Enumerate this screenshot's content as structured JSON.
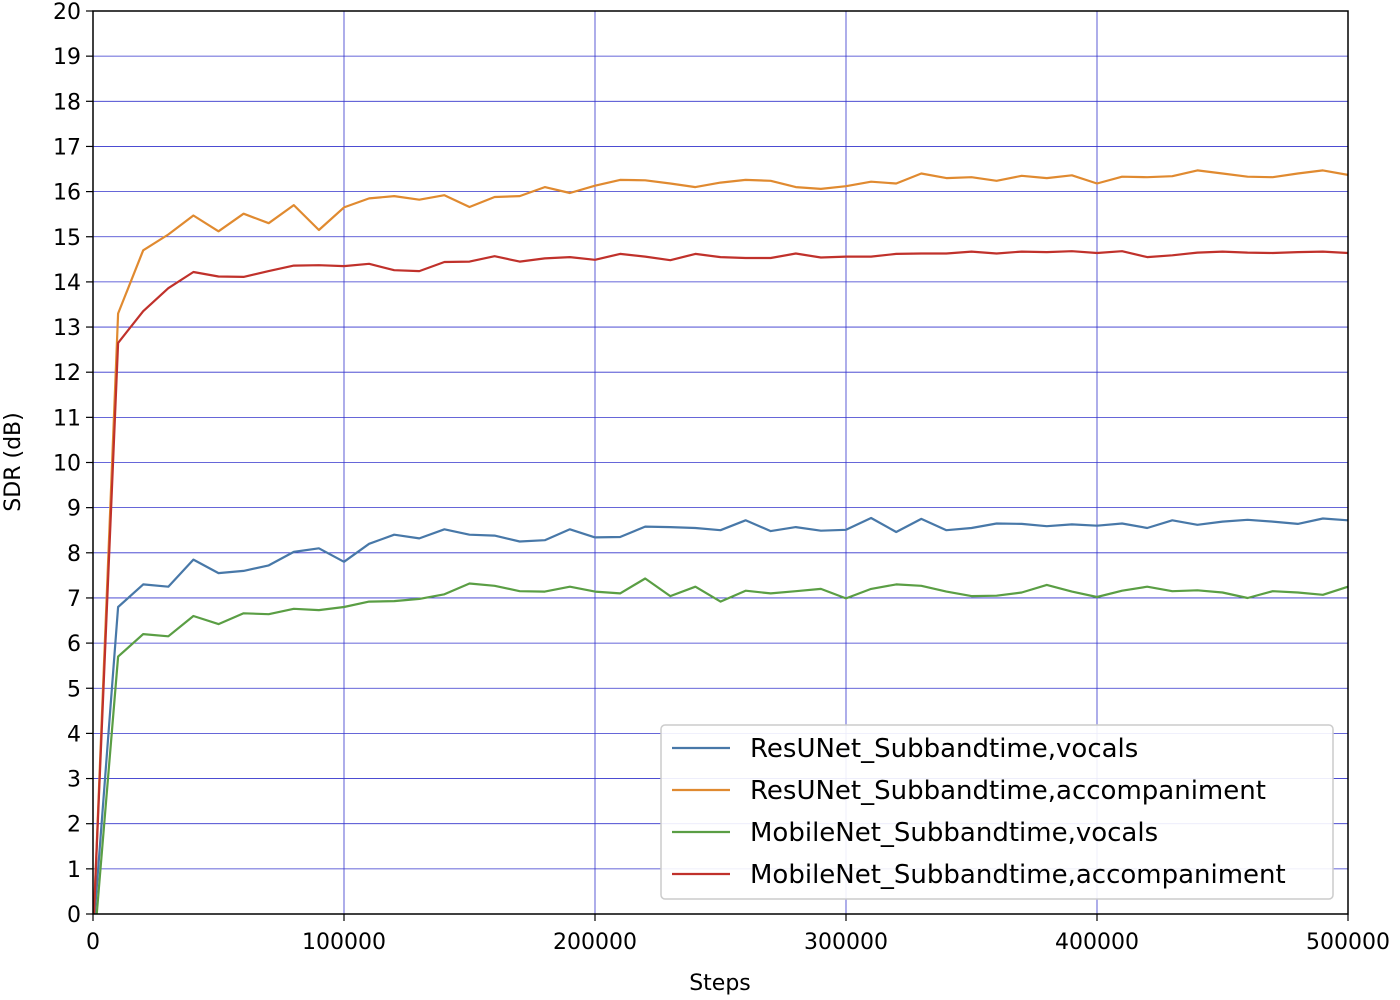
{
  "chart_data": {
    "type": "line",
    "title": "",
    "xlabel": "Steps",
    "ylabel": "SDR (dB)",
    "xlim": [
      0,
      500000
    ],
    "ylim": [
      0,
      20
    ],
    "xticks": [
      0,
      100000,
      200000,
      300000,
      400000,
      500000
    ],
    "yticks": [
      0,
      1,
      2,
      3,
      4,
      5,
      6,
      7,
      8,
      9,
      10,
      11,
      12,
      13,
      14,
      15,
      16,
      17,
      18,
      19,
      20
    ],
    "grid": true,
    "grid_color": "#3333cc",
    "legend_position": "lower-right",
    "x": [
      0,
      10000,
      20000,
      30000,
      40000,
      50000,
      60000,
      70000,
      80000,
      90000,
      100000,
      110000,
      120000,
      130000,
      140000,
      150000,
      160000,
      170000,
      180000,
      190000,
      200000,
      210000,
      220000,
      230000,
      240000,
      250000,
      260000,
      270000,
      280000,
      290000,
      300000,
      310000,
      320000,
      330000,
      340000,
      350000,
      360000,
      370000,
      380000,
      390000,
      400000,
      410000,
      420000,
      430000,
      440000,
      450000,
      460000,
      470000,
      480000,
      490000,
      500000
    ],
    "series": [
      {
        "name": "ResUNet_Subbandtime,vocals",
        "color": "#4878a8",
        "values": [
          -0.5,
          6.8,
          7.3,
          7.25,
          7.85,
          7.55,
          7.6,
          7.72,
          8.02,
          8.1,
          7.8,
          8.2,
          8.4,
          8.32,
          8.52,
          8.4,
          8.38,
          8.25,
          8.28,
          8.52,
          8.34,
          8.35,
          8.58,
          8.57,
          8.55,
          8.5,
          8.72,
          8.48,
          8.57,
          8.49,
          8.51,
          8.77,
          8.46,
          8.75,
          8.5,
          8.55,
          8.65,
          8.64,
          8.59,
          8.63,
          8.6,
          8.65,
          8.55,
          8.72,
          8.62,
          8.69,
          8.73,
          8.69,
          8.64,
          8.76,
          8.72
        ]
      },
      {
        "name": "ResUNet_Subbandtime,accompaniment",
        "color": "#e08a30",
        "values": [
          -0.5,
          13.3,
          14.7,
          15.05,
          15.47,
          15.12,
          15.51,
          15.3,
          15.7,
          15.15,
          15.65,
          15.85,
          15.9,
          15.82,
          15.92,
          15.66,
          15.88,
          15.9,
          16.1,
          15.97,
          16.13,
          16.26,
          16.25,
          16.18,
          16.1,
          16.2,
          16.26,
          16.24,
          16.1,
          16.06,
          16.12,
          16.22,
          16.18,
          16.4,
          16.3,
          16.32,
          16.24,
          16.35,
          16.3,
          16.36,
          16.18,
          16.33,
          16.32,
          16.34,
          16.47,
          16.4,
          16.33,
          16.32,
          16.4,
          16.47,
          16.37
        ]
      },
      {
        "name": "MobileNet_Subbandtime,vocals",
        "color": "#5a9e44",
        "values": [
          -1.0,
          5.7,
          6.2,
          6.15,
          6.6,
          6.42,
          6.66,
          6.64,
          6.76,
          6.73,
          6.8,
          6.92,
          6.93,
          6.98,
          7.08,
          7.32,
          7.27,
          7.15,
          7.14,
          7.25,
          7.14,
          7.1,
          7.43,
          7.04,
          7.25,
          6.92,
          7.16,
          7.1,
          7.15,
          7.2,
          6.99,
          7.2,
          7.3,
          7.27,
          7.14,
          7.04,
          7.05,
          7.12,
          7.29,
          7.14,
          7.02,
          7.16,
          7.25,
          7.15,
          7.17,
          7.12,
          7.0,
          7.15,
          7.12,
          7.07,
          7.25
        ]
      },
      {
        "name": "MobileNet_Subbandtime,accompaniment",
        "color": "#c0312b",
        "values": [
          -0.5,
          12.65,
          13.35,
          13.86,
          14.22,
          14.12,
          14.11,
          14.24,
          14.36,
          14.37,
          14.35,
          14.4,
          14.26,
          14.24,
          14.44,
          14.45,
          14.57,
          14.45,
          14.52,
          14.55,
          14.49,
          14.62,
          14.56,
          14.48,
          14.62,
          14.55,
          14.53,
          14.53,
          14.63,
          14.54,
          14.56,
          14.56,
          14.62,
          14.63,
          14.63,
          14.67,
          14.63,
          14.67,
          14.66,
          14.68,
          14.64,
          14.68,
          14.55,
          14.59,
          14.65,
          14.67,
          14.65,
          14.64,
          14.66,
          14.67,
          14.64
        ]
      }
    ]
  }
}
